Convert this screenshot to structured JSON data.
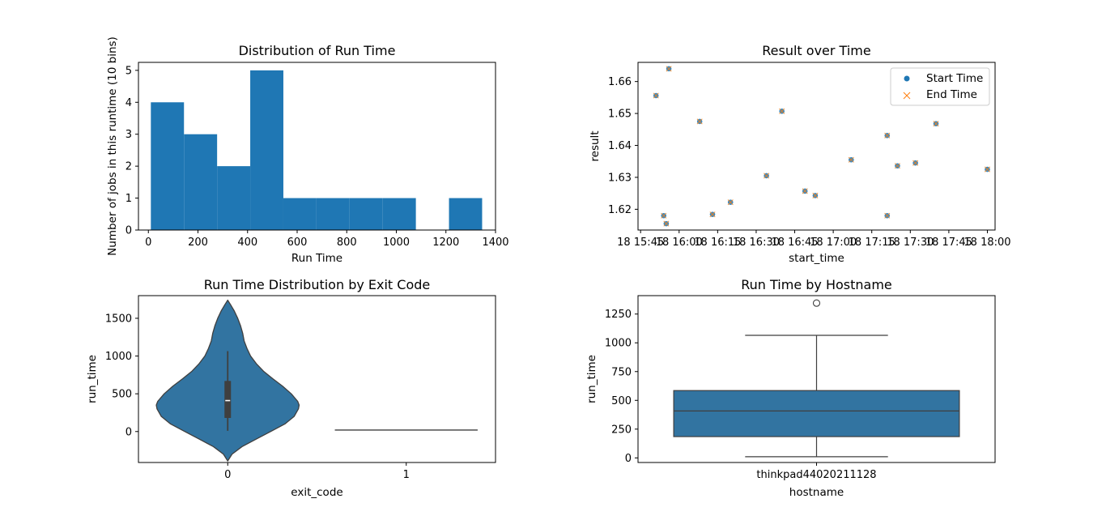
{
  "chart_data": [
    {
      "type": "bar",
      "title": "Distribution of Run Time",
      "xlabel": "Run Time",
      "ylabel": "Number of jobs in this runtime (10 bins)",
      "xlim": [
        -40,
        1400
      ],
      "ylim": [
        0,
        5.25
      ],
      "xticks": [
        0,
        200,
        400,
        600,
        800,
        1000,
        1200,
        1400
      ],
      "yticks": [
        0,
        1,
        2,
        3,
        4,
        5
      ],
      "bins": [
        {
          "x0": 10,
          "x1": 143.6,
          "count": 4
        },
        {
          "x0": 143.6,
          "x1": 277.2,
          "count": 3
        },
        {
          "x0": 277.2,
          "x1": 410.8,
          "count": 2
        },
        {
          "x0": 410.8,
          "x1": 544.4,
          "count": 5
        },
        {
          "x0": 544.4,
          "x1": 678.0,
          "count": 1
        },
        {
          "x0": 678.0,
          "x1": 811.6,
          "count": 1
        },
        {
          "x0": 811.6,
          "x1": 945.2,
          "count": 1
        },
        {
          "x0": 945.2,
          "x1": 1078.8,
          "count": 1
        },
        {
          "x0": 1078.8,
          "x1": 1212.4,
          "count": 0
        },
        {
          "x0": 1212.4,
          "x1": 1346.0,
          "count": 1
        }
      ],
      "color": "#1f77b4"
    },
    {
      "type": "scatter",
      "title": "Result over Time",
      "xlabel": "start_time",
      "ylabel": "result",
      "xlim": [
        "15:44",
        "18:03"
      ],
      "ylim": [
        1.6135,
        1.666
      ],
      "xticks": [
        "15:45",
        "16:00",
        "16:15",
        "16:30",
        "16:45",
        "17:00",
        "17:15",
        "17:30",
        "17:45",
        "18:00"
      ],
      "xtick_labels": [
        "18 15:45",
        "18 16:00",
        "18 16:15",
        "18 16:30",
        "18 16:45",
        "18 17:00",
        "18 17:15",
        "18 17:30",
        "18 17:45",
        "18 18:00"
      ],
      "yticks": [
        1.62,
        1.63,
        1.64,
        1.65,
        1.66
      ],
      "ytick_labels": [
        "1.62",
        "1.63",
        "1.64",
        "1.65",
        "1.66"
      ],
      "legend": "top-right",
      "series": [
        {
          "name": "Start Time",
          "marker": "circle",
          "color": "#1f77b4"
        },
        {
          "name": "End Time",
          "marker": "x",
          "color": "#ff7f0e"
        }
      ],
      "points": [
        {
          "x": "15:51",
          "y": 1.6556
        },
        {
          "x": "15:54",
          "y": 1.618
        },
        {
          "x": "15:55",
          "y": 1.6155
        },
        {
          "x": "15:56",
          "y": 1.664
        },
        {
          "x": "16:08",
          "y": 1.6475
        },
        {
          "x": "16:13",
          "y": 1.6184
        },
        {
          "x": "16:20",
          "y": 1.6222
        },
        {
          "x": "16:34",
          "y": 1.6305
        },
        {
          "x": "16:40",
          "y": 1.6507
        },
        {
          "x": "16:49",
          "y": 1.6257
        },
        {
          "x": "16:53",
          "y": 1.6243
        },
        {
          "x": "17:07",
          "y": 1.6355
        },
        {
          "x": "17:21",
          "y": 1.6431
        },
        {
          "x": "17:21",
          "y": 1.618
        },
        {
          "x": "17:25",
          "y": 1.6336
        },
        {
          "x": "17:32",
          "y": 1.6345
        },
        {
          "x": "17:40",
          "y": 1.6468
        },
        {
          "x": "18:00",
          "y": 1.6325
        }
      ]
    },
    {
      "type": "violin",
      "title": "Run Time Distribution by Exit Code",
      "xlabel": "exit_code",
      "ylabel": "run_time",
      "ylim": [
        -410,
        1800
      ],
      "yticks": [
        0,
        500,
        1000,
        1500
      ],
      "categories": [
        "0",
        "1"
      ],
      "color": "#3274a1",
      "violins": [
        {
          "category": "0",
          "profile": [
            [
              -390,
              0.0
            ],
            [
              -300,
              0.06
            ],
            [
              -200,
              0.2
            ],
            [
              -100,
              0.4
            ],
            [
              0,
              0.6
            ],
            [
              100,
              0.8
            ],
            [
              200,
              0.93
            ],
            [
              300,
              0.99
            ],
            [
              350,
              1.0
            ],
            [
              400,
              0.98
            ],
            [
              500,
              0.89
            ],
            [
              600,
              0.77
            ],
            [
              700,
              0.63
            ],
            [
              800,
              0.5
            ],
            [
              900,
              0.4
            ],
            [
              1000,
              0.32
            ],
            [
              1100,
              0.27
            ],
            [
              1200,
              0.23
            ],
            [
              1300,
              0.21
            ],
            [
              1400,
              0.18
            ],
            [
              1500,
              0.14
            ],
            [
              1600,
              0.09
            ],
            [
              1680,
              0.04
            ],
            [
              1740,
              0.0
            ]
          ],
          "q1": 180,
          "median": 410,
          "q3": 670,
          "whisker_low": 10,
          "whisker_high": 1065
        },
        {
          "category": "1",
          "flat_at": 20
        }
      ]
    },
    {
      "type": "box",
      "title": "Run Time by Hostname",
      "xlabel": "hostname",
      "ylabel": "run_time",
      "ylim": [
        -40,
        1410
      ],
      "yticks": [
        0,
        250,
        500,
        750,
        1000,
        1250
      ],
      "categories": [
        "thinkpad44020211128"
      ],
      "color": "#3274a1",
      "boxes": [
        {
          "category": "thinkpad44020211128",
          "whisker_low": 10,
          "q1": 185,
          "median": 408,
          "q3": 585,
          "whisker_high": 1065,
          "outliers": [
            1345
          ]
        }
      ]
    }
  ]
}
